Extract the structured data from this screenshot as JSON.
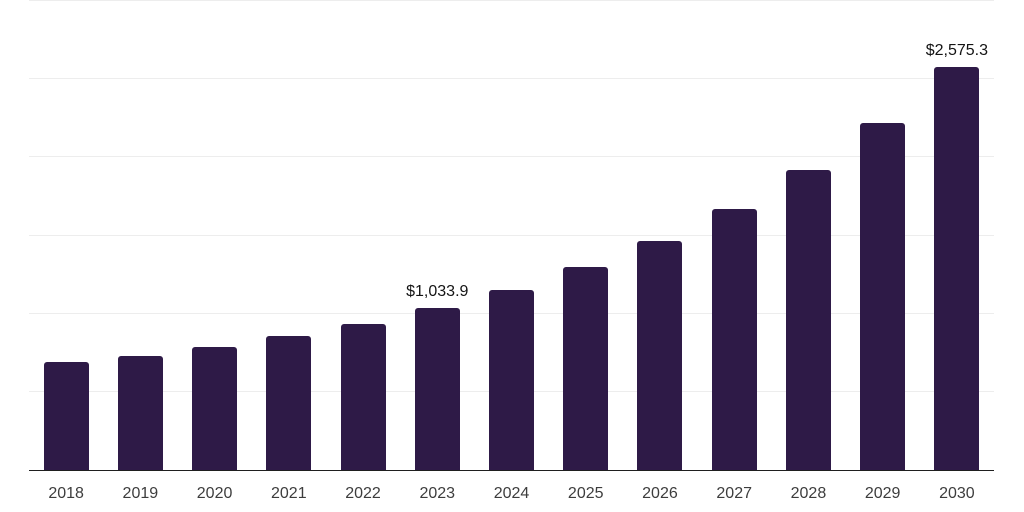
{
  "chart_data": {
    "type": "bar",
    "title": "",
    "xlabel": "",
    "ylabel": "",
    "categories": [
      "2018",
      "2019",
      "2020",
      "2021",
      "2022",
      "2023",
      "2024",
      "2025",
      "2026",
      "2027",
      "2028",
      "2029",
      "2030"
    ],
    "values": [
      689,
      731,
      790,
      856,
      936,
      1033.9,
      1154,
      1296,
      1464,
      1667,
      1919,
      2219,
      2575.3
    ],
    "data_labels": [
      "",
      "",
      "",
      "",
      "",
      "$1,033.9",
      "",
      "",
      "",
      "",
      "",
      "",
      "$2,575.3"
    ],
    "ylim": [
      0,
      3000
    ],
    "grid_step": 500,
    "grid": true,
    "legend": false,
    "colors": {
      "bar": "#2e1a47",
      "grid": "#ededed",
      "axis": "#1f1f1f",
      "tick_label": "#3d3d3d",
      "data_label": "#141414",
      "background": "#ffffff"
    }
  }
}
